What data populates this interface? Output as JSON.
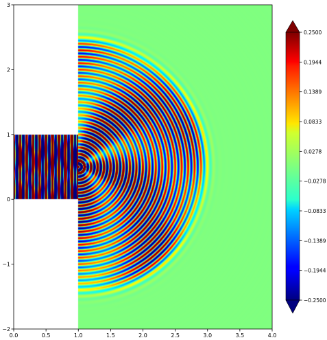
{
  "chart_data": {
    "type": "heatmap",
    "title": "",
    "xlabel": "",
    "ylabel": "",
    "xlim": [
      0,
      4
    ],
    "ylim": [
      -2,
      3
    ],
    "x_ticks": [
      "0.0",
      "0.5",
      "1.0",
      "1.5",
      "2.0",
      "2.5",
      "3.0",
      "3.5",
      "4.0"
    ],
    "y_ticks": [
      "−2",
      "−1",
      "0",
      "1",
      "2",
      "3"
    ],
    "colormap": "jet",
    "color_range": [
      -0.25,
      0.25
    ],
    "colorbar": {
      "placement": "right",
      "extend": "both",
      "tick_labels": [
        "0.2500",
        "0.1944",
        "0.1389",
        "0.0833",
        "0.0278",
        "−0.0278",
        "−0.0833",
        "−0.1389",
        "−0.1944",
        "−0.2500"
      ]
    },
    "domain": {
      "channel": {
        "x": [
          0.0,
          1.0
        ],
        "y": [
          0.0,
          1.0
        ]
      },
      "open_region": {
        "x": [
          1.0,
          4.0
        ],
        "y": [
          -2.0,
          3.0
        ]
      },
      "empty_regions": [
        {
          "x": [
            0.0,
            1.0
          ],
          "y": [
            1.0,
            3.0
          ]
        },
        {
          "x": [
            0.0,
            1.0
          ],
          "y": [
            -2.0,
            0.0
          ]
        }
      ]
    },
    "field": {
      "source_point": [
        1.0,
        0.5
      ],
      "wavefront_max_radius": 1.95,
      "wavelength": 0.1
    }
  }
}
